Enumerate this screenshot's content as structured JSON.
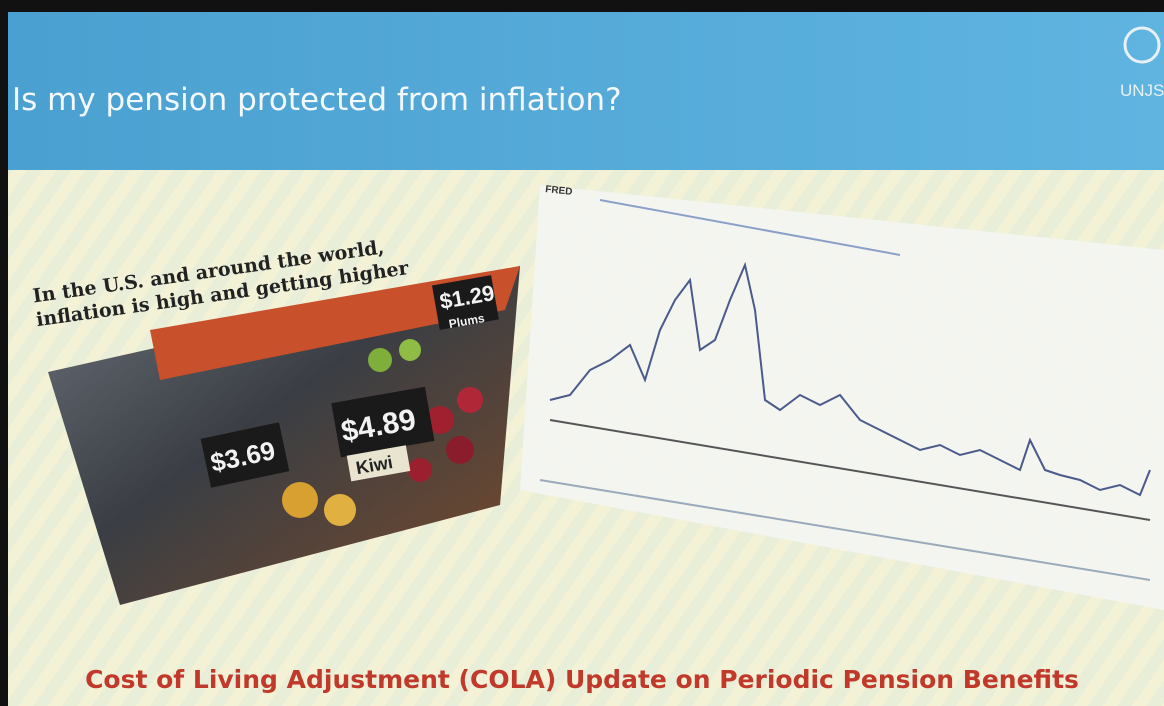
{
  "slide": {
    "title": "Is my pension protected from inflation?",
    "logo": "UNJS",
    "headline": [
      "In the U.S. and around the world,",
      "inflation is high and getting higher"
    ],
    "price_tags": [
      "$1.29",
      "Plums",
      "$3.69",
      "$4.89",
      "Kiwi"
    ],
    "chart_label": "FRED",
    "footer": "Cost of Living Adjustment (COLA) Update on Periodic Pension Benefits"
  }
}
